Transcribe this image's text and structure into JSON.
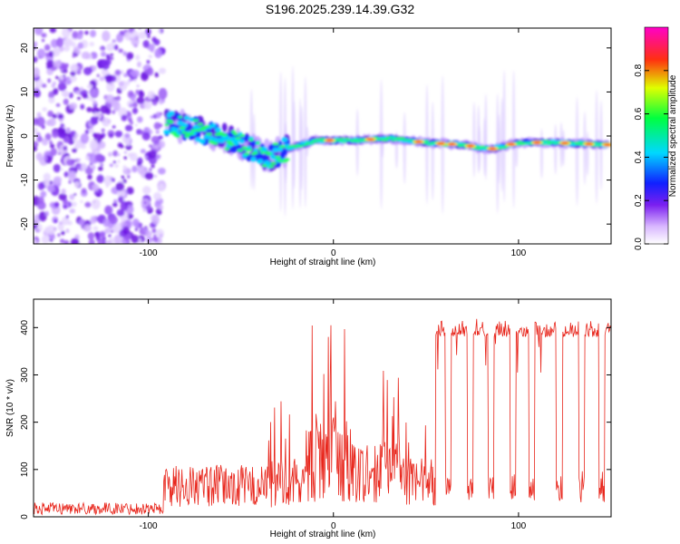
{
  "title": "S196.2025.239.14.39.G32",
  "chart_data": [
    {
      "type": "heatmap",
      "name": "spectrogram",
      "xlabel": "Height of straight line (km)",
      "ylabel": "Frequency (Hz)",
      "xlim": [
        -162,
        150
      ],
      "ylim": [
        -24.5,
        24.5
      ],
      "xticks": [
        -100,
        0,
        100
      ],
      "yticks": [
        -20,
        -10,
        0,
        10,
        20
      ],
      "colorbar": {
        "label": "Normalized spectral amplitude",
        "range": [
          0,
          1
        ],
        "ticks": [
          "0.0",
          "0.2",
          "0.4",
          "0.6",
          "0.8"
        ]
      },
      "ridge": {
        "description_points": [
          {
            "x": -90,
            "y": 3
          },
          {
            "x": -75,
            "y": 1.5
          },
          {
            "x": -60,
            "y": 0
          },
          {
            "x": -50,
            "y": -2
          },
          {
            "x": -35,
            "y": -5
          },
          {
            "x": -25,
            "y": -3
          },
          {
            "x": -10,
            "y": -1
          },
          {
            "x": 10,
            "y": -1
          },
          {
            "x": 30,
            "y": -0.5
          },
          {
            "x": 50,
            "y": -1.5
          },
          {
            "x": 70,
            "y": -2
          },
          {
            "x": 85,
            "y": -3
          },
          {
            "x": 100,
            "y": -1.5
          },
          {
            "x": 120,
            "y": -1.5
          },
          {
            "x": 148,
            "y": -2
          }
        ]
      }
    },
    {
      "type": "line",
      "name": "snr",
      "xlabel": "Height of straight line (km)",
      "ylabel": "SNR (10 * v/v)",
      "xlim": [
        -162,
        150
      ],
      "ylim": [
        0,
        460
      ],
      "xticks": [
        -100,
        0,
        100
      ],
      "yticks": [
        0,
        100,
        200,
        300,
        400
      ],
      "color": "#e8261c",
      "segments": [
        {
          "x0": -162,
          "x1": -92,
          "low": 5,
          "high": 30
        },
        {
          "x0": -92,
          "x1": -35,
          "low": 20,
          "high": 110
        },
        {
          "x0": -35,
          "x1": -15,
          "low": 20,
          "high": 250
        },
        {
          "x0": -15,
          "x1": 10,
          "low": 30,
          "high": 420
        },
        {
          "x0": 10,
          "x1": 38,
          "low": 30,
          "high": 320
        },
        {
          "x0": 38,
          "x1": 55,
          "low": 20,
          "high": 250
        },
        {
          "x0": 55,
          "x1": 150,
          "low": 380,
          "high": 420
        }
      ],
      "dips": [
        62,
        74,
        85,
        97,
        107,
        122,
        134,
        145
      ]
    }
  ]
}
